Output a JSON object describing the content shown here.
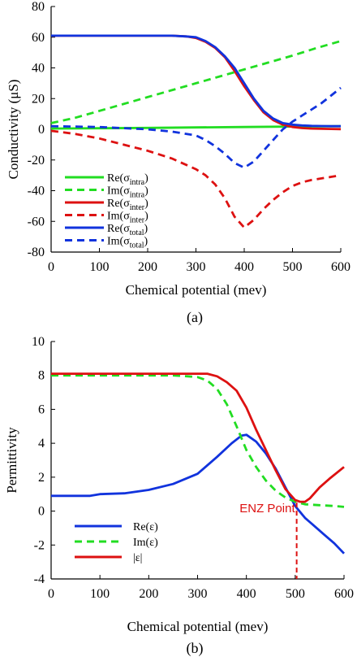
{
  "chart_data": [
    {
      "type": "line",
      "caption": "(a)",
      "xlabel": "Chemical potential (mev)",
      "ylabel": "Conductivity (μS)",
      "xlim": [
        0,
        600
      ],
      "ylim": [
        -80,
        80
      ],
      "xticks": [
        "0",
        "100",
        "200",
        "300",
        "400",
        "500",
        "600"
      ],
      "yticks": [
        "80",
        "60",
        "40",
        "20",
        "0",
        "-20",
        "-40",
        "-60",
        "-80"
      ],
      "grid": false,
      "legend_placement": "bottom-left",
      "series": [
        {
          "name": "Re(σintra)",
          "base": "Re(σ",
          "sub": "intra",
          "close": ")",
          "color": "#22dd22",
          "dash": "solid",
          "x": [
            0,
            100,
            200,
            300,
            400,
            500,
            600
          ],
          "y": [
            0.5,
            0.7,
            0.9,
            1.2,
            1.5,
            1.8,
            2
          ]
        },
        {
          "name": "Im(σintra)",
          "base": "Im(σ",
          "sub": "intra",
          "close": ")",
          "color": "#22dd22",
          "dash": "dashed",
          "x": [
            0,
            50,
            100,
            150,
            200,
            250,
            300,
            350,
            400,
            450,
            500,
            550,
            600
          ],
          "y": [
            4,
            7.5,
            12,
            16.5,
            21,
            25.5,
            30,
            34.5,
            39,
            43.5,
            48,
            53,
            57.5
          ]
        },
        {
          "name": "Re(σinter)",
          "base": "Re(σ",
          "sub": "inter",
          "close": ")",
          "color": "#dd1111",
          "dash": "solid",
          "x": [
            0,
            100,
            200,
            250,
            280,
            300,
            320,
            340,
            360,
            380,
            400,
            420,
            440,
            460,
            480,
            500,
            520,
            540,
            560,
            580,
            600
          ],
          "y": [
            61,
            61,
            61,
            61,
            60.5,
            59.5,
            57,
            53,
            47,
            38,
            28,
            19,
            11,
            6,
            3,
            1.5,
            0.8,
            0.5,
            0.3,
            0.2,
            0.1
          ]
        },
        {
          "name": "Im(σinter)",
          "base": "Im(σ",
          "sub": "inter",
          "close": ")",
          "color": "#dd1111",
          "dash": "dashed",
          "x": [
            0,
            50,
            100,
            150,
            200,
            250,
            300,
            320,
            340,
            360,
            380,
            400,
            420,
            440,
            460,
            480,
            500,
            520,
            540,
            560,
            580,
            600
          ],
          "y": [
            -1,
            -3,
            -6,
            -10,
            -14,
            -19,
            -26,
            -30,
            -36,
            -45,
            -57,
            -64,
            -59,
            -52,
            -46,
            -41,
            -37,
            -34.5,
            -33,
            -32,
            -31,
            -30
          ]
        },
        {
          "name": "Re(σtotal)",
          "base": "Re(σ",
          "sub": "total",
          "close": ")",
          "color": "#1133dd",
          "dash": "solid",
          "x": [
            0,
            100,
            200,
            250,
            280,
            300,
            320,
            340,
            360,
            380,
            400,
            420,
            440,
            460,
            480,
            500,
            520,
            540,
            560,
            580,
            600
          ],
          "y": [
            61,
            61,
            61,
            61,
            60.5,
            60,
            57.5,
            53.5,
            47.5,
            40,
            30,
            20,
            12,
            7,
            4,
            3,
            2.5,
            2.2,
            2.1,
            2,
            2
          ]
        },
        {
          "name": "Im(σtotal)",
          "base": "Im(σ",
          "sub": "total",
          "close": ")",
          "color": "#1133dd",
          "dash": "dashed",
          "x": [
            0,
            100,
            200,
            250,
            300,
            320,
            340,
            360,
            380,
            400,
            420,
            440,
            460,
            480,
            500,
            520,
            540,
            560,
            580,
            600
          ],
          "y": [
            2,
            1.5,
            0,
            -1.5,
            -4,
            -7,
            -11,
            -16,
            -22,
            -25,
            -21,
            -14,
            -7,
            0,
            5,
            9,
            13,
            17,
            22,
            27
          ]
        }
      ]
    },
    {
      "type": "line",
      "caption": "(b)",
      "xlabel": "Chemical potential (mev)",
      "ylabel": "Permittivity",
      "xlim": [
        0,
        600
      ],
      "ylim": [
        -4,
        10
      ],
      "xticks": [
        "0",
        "100",
        "200",
        "300",
        "400",
        "500",
        "600"
      ],
      "yticks": [
        "10",
        "8",
        "6",
        "4",
        "2",
        "0",
        "-2",
        "-4"
      ],
      "grid": false,
      "legend_placement": "bottom-left",
      "annotation": {
        "text": "ENZ Point",
        "x": 503,
        "y": 0.5,
        "color": "#dd1111"
      },
      "series": [
        {
          "name": "Re(ε)",
          "color": "#1133dd",
          "dash": "solid",
          "x": [
            0,
            50,
            80,
            100,
            150,
            200,
            250,
            300,
            340,
            370,
            390,
            400,
            420,
            440,
            460,
            480,
            500,
            520,
            540,
            560,
            580,
            600
          ],
          "y": [
            0.9,
            0.9,
            0.9,
            1,
            1.05,
            1.25,
            1.6,
            2.2,
            3.2,
            4,
            4.45,
            4.5,
            4.1,
            3.4,
            2.5,
            1.4,
            0.3,
            -0.4,
            -0.9,
            -1.4,
            -1.9,
            -2.5
          ]
        },
        {
          "name": "Im(ε)",
          "color": "#22dd22",
          "dash": "dashed",
          "x": [
            0,
            100,
            200,
            250,
            280,
            300,
            320,
            340,
            360,
            380,
            400,
            420,
            440,
            460,
            480,
            500,
            520,
            550,
            580,
            600
          ],
          "y": [
            8,
            8,
            8,
            8,
            7.95,
            7.9,
            7.7,
            7.2,
            6.3,
            5,
            3.6,
            2.6,
            1.8,
            1.2,
            0.8,
            0.55,
            0.4,
            0.35,
            0.3,
            0.25
          ]
        },
        {
          "name": "|ε|",
          "color": "#dd1111",
          "dash": "solid",
          "x": [
            0,
            100,
            200,
            300,
            320,
            340,
            360,
            380,
            400,
            420,
            440,
            460,
            480,
            500,
            510,
            520,
            530,
            550,
            570,
            600
          ],
          "y": [
            8.1,
            8.1,
            8.1,
            8.1,
            8.1,
            7.95,
            7.6,
            7.1,
            6.1,
            4.8,
            3.6,
            2.4,
            1.3,
            0.65,
            0.55,
            0.55,
            0.75,
            1.4,
            1.9,
            2.6
          ]
        }
      ]
    }
  ]
}
